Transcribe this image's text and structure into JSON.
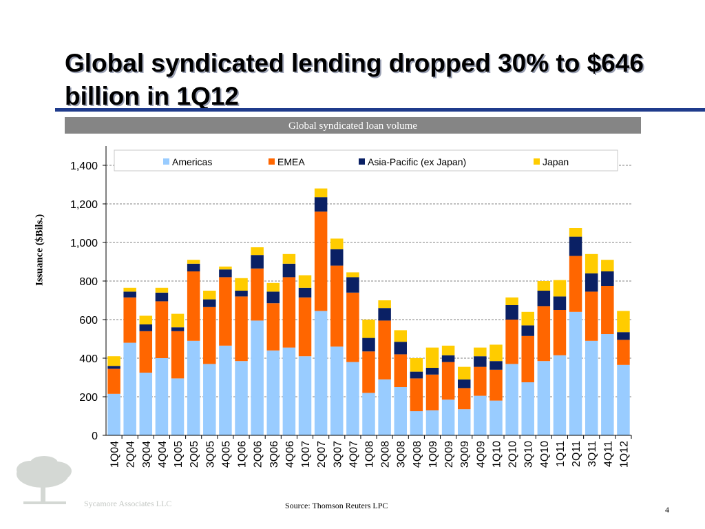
{
  "slide": {
    "title": "Global syndicated lending dropped 30% to $646 billion in 1Q12",
    "banner": "Global syndicated loan volume",
    "source": "Source: Thomson Reuters LPC",
    "page_number": "4",
    "company": "Sycamore Associates LLC",
    "title_rule_color": "#1f3b8c",
    "logo_icon": "tree-icon"
  },
  "chart_data": {
    "type": "bar",
    "stacked": true,
    "title": "Global syndicated loan volume",
    "xlabel": "",
    "ylabel": "Issuance ($Bils.)",
    "ylim": [
      0,
      1500
    ],
    "yticks": [
      0,
      200,
      400,
      600,
      800,
      1000,
      1200,
      1400
    ],
    "ytick_labels": [
      "0",
      "200",
      "400",
      "600",
      "800",
      "1,000",
      "1,200",
      "1,400"
    ],
    "grid": "horizontal dashed",
    "legend_position": "top",
    "categories": [
      "1Q04",
      "2Q04",
      "3Q04",
      "4Q04",
      "1Q05",
      "2Q05",
      "3Q05",
      "4Q05",
      "1Q06",
      "2Q06",
      "3Q06",
      "4Q06",
      "1Q07",
      "2Q07",
      "3Q07",
      "4Q07",
      "1Q08",
      "2Q08",
      "3Q08",
      "4Q08",
      "1Q09",
      "2Q09",
      "3Q09",
      "4Q09",
      "1Q10",
      "2Q10",
      "3Q10",
      "4Q10",
      "1Q11",
      "2Q11",
      "3Q11",
      "4Q11",
      "1Q12"
    ],
    "series": [
      {
        "name": "Americas",
        "color": "#99ccff",
        "values": [
          215,
          480,
          325,
          400,
          295,
          490,
          370,
          465,
          385,
          595,
          440,
          455,
          410,
          645,
          460,
          380,
          220,
          290,
          250,
          125,
          130,
          185,
          135,
          205,
          180,
          370,
          275,
          385,
          415,
          640,
          490,
          525,
          365
        ]
      },
      {
        "name": "EMEA",
        "color": "#ff6600",
        "values": [
          130,
          235,
          215,
          295,
          245,
          360,
          295,
          355,
          335,
          270,
          245,
          365,
          305,
          515,
          420,
          360,
          215,
          305,
          170,
          170,
          185,
          195,
          110,
          150,
          160,
          230,
          240,
          285,
          235,
          290,
          255,
          250,
          130
        ]
      },
      {
        "name": "Asia-Pacific (ex Japan)",
        "color": "#0a2064",
        "values": [
          15,
          30,
          35,
          45,
          20,
          40,
          40,
          40,
          30,
          70,
          60,
          70,
          50,
          75,
          85,
          80,
          70,
          65,
          65,
          35,
          35,
          35,
          45,
          55,
          45,
          75,
          55,
          80,
          70,
          100,
          95,
          75,
          40
        ]
      },
      {
        "name": "Japan",
        "color": "#ffcc00",
        "values": [
          50,
          20,
          45,
          25,
          70,
          20,
          45,
          15,
          65,
          40,
          45,
          50,
          65,
          45,
          55,
          25,
          95,
          40,
          60,
          70,
          105,
          50,
          65,
          45,
          85,
          40,
          70,
          50,
          85,
          45,
          100,
          60,
          110
        ]
      }
    ]
  }
}
